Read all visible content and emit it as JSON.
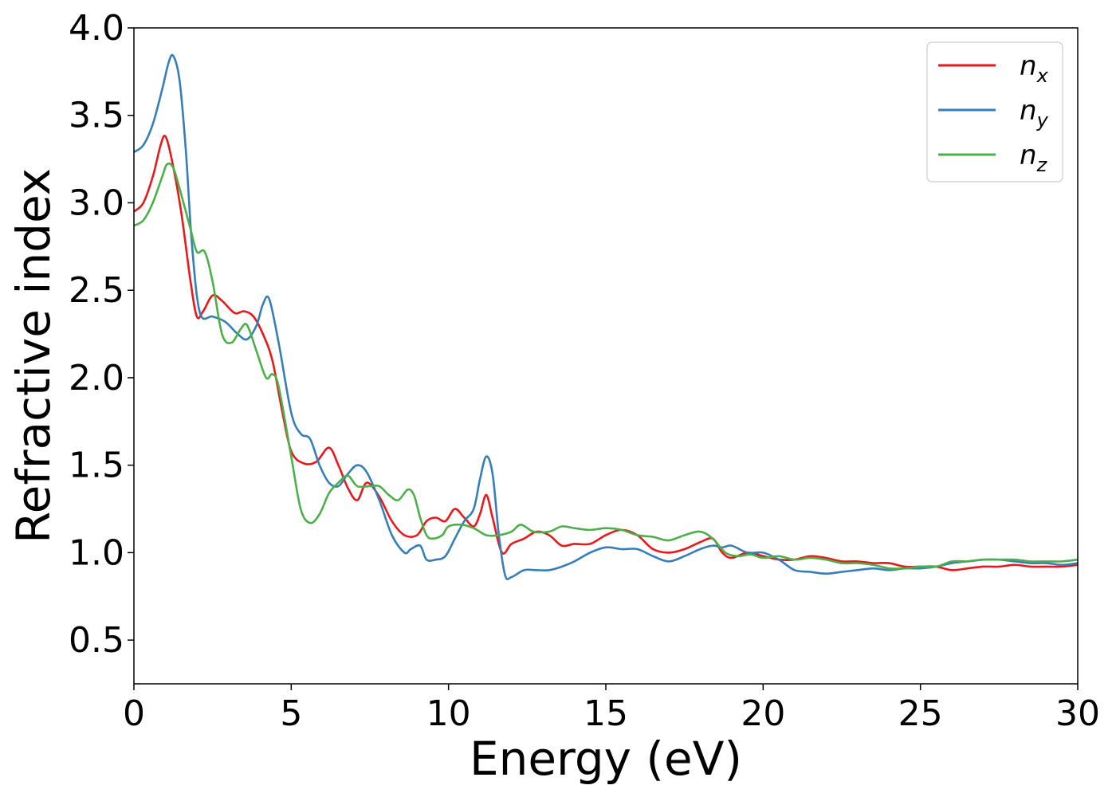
{
  "chart_data": {
    "type": "line",
    "xlabel": "Energy (eV)",
    "ylabel": "Refractive index",
    "xlim": [
      0,
      30
    ],
    "ylim": [
      0.25,
      4.0
    ],
    "xticks": [
      0,
      5,
      10,
      15,
      20,
      25,
      30
    ],
    "xtick_labels": [
      "0",
      "5",
      "10",
      "15",
      "20",
      "25",
      "30"
    ],
    "yticks": [
      0.5,
      1.0,
      1.5,
      2.0,
      2.5,
      3.0,
      3.5,
      4.0
    ],
    "ytick_labels": [
      "0.5",
      "1.0",
      "1.5",
      "2.0",
      "2.5",
      "3.0",
      "3.5",
      "4.0"
    ],
    "grid": false,
    "legend_position": "top-right",
    "series": [
      {
        "name": "n_x",
        "legend_main": "n",
        "legend_sub": "x",
        "color": "#e41a1c",
        "x": [
          0,
          0.3,
          0.6,
          0.85,
          1.0,
          1.2,
          1.5,
          1.8,
          2.0,
          2.2,
          2.5,
          2.8,
          3.2,
          3.5,
          3.8,
          4.1,
          4.4,
          4.7,
          5.0,
          5.4,
          5.8,
          6.2,
          6.5,
          6.8,
          7.1,
          7.4,
          7.8,
          8.2,
          8.6,
          9.0,
          9.3,
          9.6,
          9.9,
          10.2,
          10.5,
          10.8,
          11.0,
          11.2,
          11.4,
          11.7,
          12.0,
          12.4,
          12.8,
          13.2,
          13.6,
          14.0,
          14.5,
          15.0,
          15.5,
          16.0,
          16.5,
          17.0,
          17.5,
          18.0,
          18.4,
          18.7,
          19.0,
          19.5,
          20.0,
          20.5,
          21.0,
          21.5,
          22.0,
          22.5,
          23.0,
          23.5,
          24.0,
          24.5,
          25.0,
          25.5,
          26.0,
          26.5,
          27.0,
          27.5,
          28.0,
          28.5,
          29.0,
          29.5,
          30.0
        ],
        "y": [
          2.95,
          3.0,
          3.15,
          3.33,
          3.38,
          3.25,
          2.95,
          2.55,
          2.35,
          2.38,
          2.47,
          2.44,
          2.37,
          2.38,
          2.35,
          2.25,
          2.1,
          1.82,
          1.58,
          1.51,
          1.52,
          1.6,
          1.5,
          1.37,
          1.3,
          1.4,
          1.32,
          1.18,
          1.1,
          1.1,
          1.18,
          1.2,
          1.18,
          1.25,
          1.2,
          1.15,
          1.22,
          1.33,
          1.2,
          1.0,
          1.05,
          1.08,
          1.12,
          1.1,
          1.04,
          1.05,
          1.05,
          1.1,
          1.13,
          1.1,
          1.02,
          1.0,
          1.02,
          1.06,
          1.08,
          1.0,
          0.97,
          1.0,
          0.98,
          0.96,
          0.96,
          0.98,
          0.97,
          0.95,
          0.95,
          0.94,
          0.94,
          0.92,
          0.92,
          0.92,
          0.9,
          0.91,
          0.92,
          0.92,
          0.93,
          0.92,
          0.92,
          0.92,
          0.93
        ]
      },
      {
        "name": "n_y",
        "legend_main": "n",
        "legend_sub": "y",
        "color": "#377eb8",
        "x": [
          0,
          0.3,
          0.6,
          0.9,
          1.1,
          1.25,
          1.45,
          1.65,
          1.85,
          2.1,
          2.5,
          2.9,
          3.3,
          3.6,
          3.9,
          4.1,
          4.3,
          4.6,
          5.0,
          5.3,
          5.6,
          5.9,
          6.2,
          6.5,
          6.8,
          7.1,
          7.4,
          7.8,
          8.2,
          8.6,
          8.8,
          9.1,
          9.3,
          9.6,
          9.9,
          10.2,
          10.5,
          10.8,
          11.0,
          11.2,
          11.4,
          11.6,
          11.8,
          12.0,
          12.4,
          12.8,
          13.2,
          13.6,
          14.0,
          14.5,
          15.0,
          15.5,
          16.0,
          16.5,
          17.0,
          17.5,
          18.0,
          18.4,
          18.7,
          19.0,
          19.5,
          20.0,
          20.5,
          21.0,
          21.5,
          22.0,
          22.5,
          23.0,
          23.5,
          24.0,
          24.5,
          25.0,
          25.5,
          26.0,
          26.5,
          27.0,
          27.5,
          28.0,
          28.5,
          29.0,
          29.5,
          30.0
        ],
        "y": [
          3.29,
          3.33,
          3.45,
          3.65,
          3.8,
          3.84,
          3.7,
          3.3,
          2.75,
          2.37,
          2.35,
          2.32,
          2.25,
          2.22,
          2.3,
          2.42,
          2.45,
          2.2,
          1.8,
          1.68,
          1.65,
          1.5,
          1.4,
          1.38,
          1.45,
          1.5,
          1.46,
          1.3,
          1.1,
          1.0,
          1.02,
          1.04,
          0.96,
          0.96,
          0.98,
          1.08,
          1.18,
          1.25,
          1.42,
          1.55,
          1.45,
          1.1,
          0.87,
          0.86,
          0.9,
          0.9,
          0.9,
          0.92,
          0.95,
          1.0,
          1.03,
          1.02,
          1.02,
          0.98,
          0.95,
          0.98,
          1.02,
          1.04,
          1.03,
          1.04,
          1.0,
          1.0,
          0.96,
          0.9,
          0.89,
          0.88,
          0.89,
          0.9,
          0.91,
          0.9,
          0.91,
          0.91,
          0.92,
          0.94,
          0.95,
          0.96,
          0.96,
          0.95,
          0.94,
          0.94,
          0.93,
          0.94
        ]
      },
      {
        "name": "n_z",
        "legend_main": "n",
        "legend_sub": "z",
        "color": "#4daf4a",
        "x": [
          0,
          0.3,
          0.6,
          0.9,
          1.05,
          1.25,
          1.5,
          1.8,
          2.0,
          2.25,
          2.5,
          2.8,
          3.1,
          3.4,
          3.6,
          3.9,
          4.2,
          4.4,
          4.6,
          5.0,
          5.3,
          5.6,
          5.9,
          6.2,
          6.5,
          6.8,
          7.1,
          7.5,
          7.8,
          8.1,
          8.4,
          8.7,
          8.9,
          9.1,
          9.3,
          9.5,
          9.8,
          10.0,
          10.4,
          10.8,
          11.2,
          11.6,
          12.0,
          12.3,
          12.7,
          13.2,
          13.6,
          14.0,
          14.5,
          15.0,
          15.5,
          16.0,
          16.5,
          17.0,
          17.5,
          18.0,
          18.4,
          18.8,
          19.2,
          19.6,
          20.0,
          20.5,
          21.0,
          21.5,
          22.0,
          22.5,
          23.0,
          23.5,
          24.0,
          24.5,
          25.0,
          25.5,
          26.0,
          26.5,
          27.0,
          27.5,
          28.0,
          28.5,
          29.0,
          29.5,
          30.0
        ],
        "y": [
          2.87,
          2.9,
          3.0,
          3.15,
          3.22,
          3.2,
          3.05,
          2.85,
          2.72,
          2.72,
          2.55,
          2.25,
          2.2,
          2.28,
          2.3,
          2.15,
          2.0,
          2.02,
          1.95,
          1.55,
          1.25,
          1.17,
          1.22,
          1.34,
          1.4,
          1.44,
          1.38,
          1.38,
          1.38,
          1.33,
          1.3,
          1.36,
          1.33,
          1.2,
          1.1,
          1.08,
          1.1,
          1.15,
          1.16,
          1.14,
          1.1,
          1.1,
          1.12,
          1.16,
          1.12,
          1.12,
          1.15,
          1.14,
          1.13,
          1.14,
          1.13,
          1.1,
          1.09,
          1.07,
          1.1,
          1.12,
          1.08,
          1.0,
          0.98,
          0.99,
          0.97,
          0.98,
          0.96,
          0.97,
          0.96,
          0.94,
          0.94,
          0.93,
          0.91,
          0.91,
          0.92,
          0.92,
          0.95,
          0.95,
          0.96,
          0.96,
          0.96,
          0.95,
          0.95,
          0.95,
          0.96
        ]
      }
    ]
  }
}
